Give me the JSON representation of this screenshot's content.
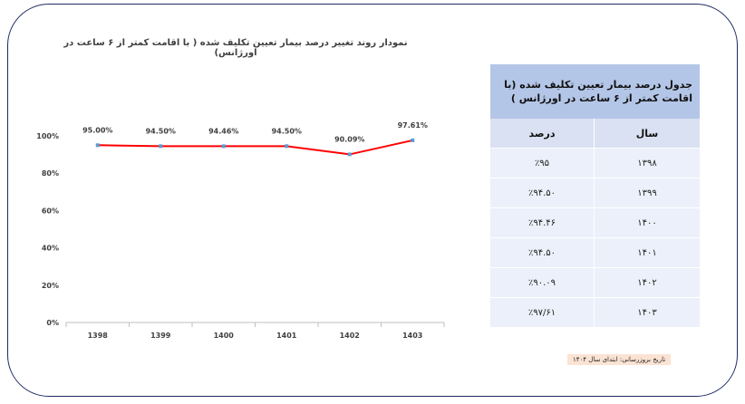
{
  "chart_data": {
    "type": "line",
    "title": "نمودار روند تغییر درصد بیمار تعیین تکلیف شده ( با اقامت کمتر از ۶ ساعت در اورژانس)",
    "categories": [
      "1398",
      "1399",
      "1400",
      "1401",
      "1402",
      "1403"
    ],
    "values": [
      95.0,
      94.5,
      94.46,
      94.5,
      90.09,
      97.61
    ],
    "data_labels": [
      "95.00%",
      "94.50%",
      "94.46%",
      "94.50%",
      "90.09%",
      "97.61%"
    ],
    "y_ticks": [
      "0%",
      "20%",
      "40%",
      "60%",
      "80%",
      "100%"
    ],
    "ylim": [
      0,
      100
    ],
    "line_color": "#ff0000",
    "marker_color": "#5b9bd5",
    "grid": false
  },
  "table": {
    "title": "جدول درصد بیمار تعیین تکلیف شده (با اقامت کمتر از ۶ ساعت در اورژانس )",
    "col_year": "سال",
    "col_percent": "درصد",
    "rows": [
      {
        "year": "۱۳۹۸",
        "percent": "٪۹۵"
      },
      {
        "year": "۱۳۹۹",
        "percent": "٪۹۴.۵۰"
      },
      {
        "year": "۱۴۰۰",
        "percent": "٪۹۴.۴۶"
      },
      {
        "year": "۱۴۰۱",
        "percent": "٪۹۴.۵۰"
      },
      {
        "year": "۱۴۰۲",
        "percent": "٪۹۰.۰۹"
      },
      {
        "year": "۱۴۰۳",
        "percent": "٪۹۷/۶۱"
      }
    ]
  },
  "note": "تاریخ بروزرسانی: ابتدای سال ۱۴۰۴"
}
